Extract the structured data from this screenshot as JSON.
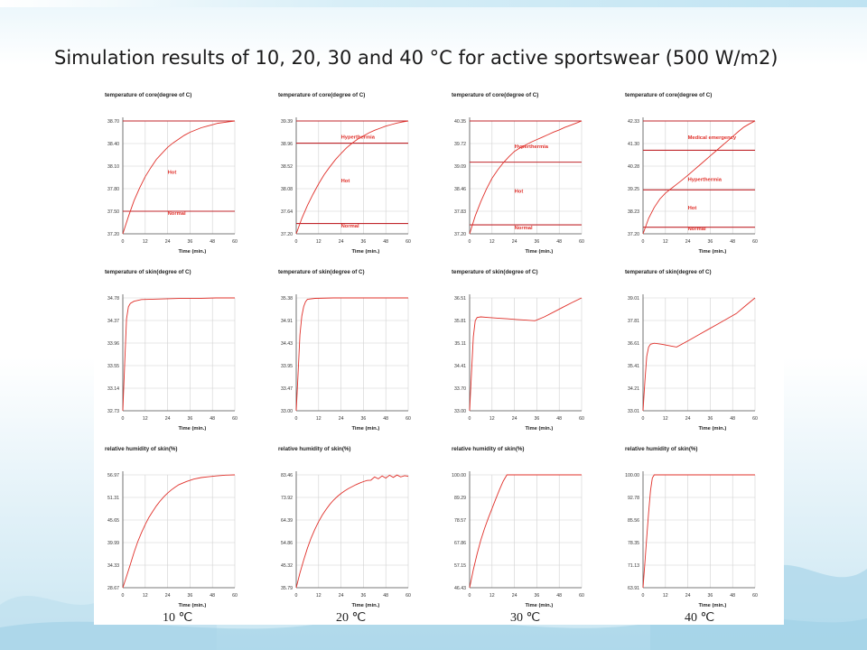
{
  "slide": {
    "title": "Simulation results of 10, 20, 30 and 40 °C for active sportswear (500 W/m2)",
    "temperature_labels": [
      "10 ℃",
      "20 ℃",
      "30 ℃",
      "40 ℃"
    ]
  },
  "colors": {
    "curve": "#e0302a",
    "threshold": "#c0262b",
    "grid": "#d0d0d0",
    "axis": "#555555"
  },
  "chart_data": [
    {
      "id": "core-10",
      "type": "line",
      "title": "temperature of core(degree of C)",
      "xlabel": "Time (min.)",
      "xticks": [
        "0",
        "12",
        "24",
        "36",
        "48",
        "60"
      ],
      "yticks": [
        "37.20",
        "37.50",
        "37.80",
        "38.10",
        "38.40",
        "38.70"
      ],
      "ylim": [
        37.2,
        38.7
      ],
      "xlim": [
        0,
        60
      ],
      "series": [
        {
          "x": [
            0,
            3,
            6,
            9,
            12,
            15,
            18,
            21,
            24,
            27,
            30,
            33,
            36,
            39,
            42,
            45,
            48,
            51,
            54,
            57,
            60
          ],
          "values": [
            37.2,
            37.43,
            37.64,
            37.81,
            37.96,
            38.08,
            38.19,
            38.27,
            38.35,
            38.41,
            38.46,
            38.51,
            38.55,
            38.58,
            38.61,
            38.63,
            38.65,
            38.67,
            38.68,
            38.69,
            38.7
          ]
        }
      ],
      "thresholds": [
        38.7,
        37.5
      ],
      "annotations": [
        {
          "text": "Hot",
          "value": 38.0
        },
        {
          "text": "Normal",
          "value": 37.45
        }
      ]
    },
    {
      "id": "core-20",
      "type": "line",
      "title": "temperature of core(degree of C)",
      "xlabel": "Time (min.)",
      "xticks": [
        "0",
        "12",
        "24",
        "36",
        "48",
        "60"
      ],
      "yticks": [
        "37.20",
        "37.64",
        "38.08",
        "38.52",
        "38.96",
        "39.39"
      ],
      "ylim": [
        37.2,
        39.39
      ],
      "xlim": [
        0,
        60
      ],
      "series": [
        {
          "x": [
            0,
            3,
            6,
            9,
            12,
            15,
            18,
            21,
            24,
            27,
            30,
            33,
            36,
            39,
            42,
            45,
            48,
            51,
            54,
            57,
            60
          ],
          "values": [
            37.2,
            37.5,
            37.75,
            37.97,
            38.17,
            38.35,
            38.5,
            38.64,
            38.76,
            38.87,
            38.96,
            39.04,
            39.1,
            39.16,
            39.21,
            39.25,
            39.29,
            39.32,
            39.35,
            39.37,
            39.39
          ]
        }
      ],
      "thresholds": [
        39.39,
        38.96,
        37.4
      ],
      "annotations": [
        {
          "text": "Hyperthermia",
          "value": 39.05
        },
        {
          "text": "Hot",
          "value": 38.2
        },
        {
          "text": "Normal",
          "value": 37.32
        }
      ]
    },
    {
      "id": "core-30",
      "type": "line",
      "title": "temperature of core(degree of C)",
      "xlabel": "Time (min.)",
      "xticks": [
        "0",
        "12",
        "24",
        "36",
        "48",
        "60"
      ],
      "yticks": [
        "37.20",
        "37.83",
        "38.46",
        "39.09",
        "39.72",
        "40.35"
      ],
      "ylim": [
        37.2,
        40.35
      ],
      "xlim": [
        0,
        60
      ],
      "series": [
        {
          "x": [
            0,
            3,
            6,
            9,
            12,
            15,
            18,
            21,
            24,
            27,
            30,
            33,
            36,
            39,
            42,
            45,
            48,
            51,
            54,
            57,
            60
          ],
          "values": [
            37.2,
            37.7,
            38.1,
            38.45,
            38.75,
            38.98,
            39.18,
            39.35,
            39.5,
            39.6,
            39.68,
            39.76,
            39.83,
            39.9,
            39.97,
            40.04,
            40.1,
            40.17,
            40.23,
            40.29,
            40.35
          ]
        }
      ],
      "thresholds": [
        40.35,
        39.2,
        37.45
      ],
      "annotations": [
        {
          "text": "Hyperthermia",
          "value": 39.6
        },
        {
          "text": "Hot",
          "value": 38.35
        },
        {
          "text": "Normal",
          "value": 37.33
        }
      ]
    },
    {
      "id": "core-40",
      "type": "line",
      "title": "temperature of core(degree of C)",
      "xlabel": "Time (min.)",
      "xticks": [
        "0",
        "12",
        "24",
        "36",
        "48",
        "60"
      ],
      "yticks": [
        "37.20",
        "38.23",
        "39.25",
        "40.28",
        "41.30",
        "42.33"
      ],
      "ylim": [
        37.2,
        42.33
      ],
      "xlim": [
        0,
        60
      ],
      "series": [
        {
          "x": [
            0,
            3,
            6,
            9,
            12,
            15,
            18,
            21,
            24,
            27,
            30,
            33,
            36,
            39,
            42,
            45,
            48,
            51,
            54,
            57,
            60
          ],
          "values": [
            37.2,
            37.9,
            38.4,
            38.78,
            39.05,
            39.25,
            39.45,
            39.65,
            39.86,
            40.08,
            40.3,
            40.52,
            40.74,
            40.96,
            41.18,
            41.4,
            41.62,
            41.84,
            42.05,
            42.2,
            42.33
          ]
        }
      ],
      "thresholds": [
        42.33,
        41.0,
        39.2,
        37.5
      ],
      "annotations": [
        {
          "text": "Medical emergency",
          "value": 41.5
        },
        {
          "text": "Hyperthermia",
          "value": 39.6
        },
        {
          "text": "Hot",
          "value": 38.3
        },
        {
          "text": "Normal",
          "value": 37.37
        }
      ]
    },
    {
      "id": "skin-10",
      "type": "line",
      "title": "temperature of skin(degree of C)",
      "xlabel": "Time (min.)",
      "xticks": [
        "0",
        "12",
        "24",
        "36",
        "48",
        "60"
      ],
      "yticks": [
        "32.73",
        "33.14",
        "33.55",
        "33.96",
        "34.37",
        "34.78"
      ],
      "ylim": [
        32.73,
        34.78
      ],
      "xlim": [
        0,
        60
      ],
      "series": [
        {
          "x": [
            0,
            1,
            2,
            3,
            4,
            6,
            10,
            20,
            30,
            40,
            50,
            60
          ],
          "values": [
            32.73,
            33.6,
            34.4,
            34.62,
            34.68,
            34.72,
            34.75,
            34.76,
            34.77,
            34.77,
            34.78,
            34.78
          ]
        }
      ],
      "thresholds": [],
      "annotations": []
    },
    {
      "id": "skin-20",
      "type": "line",
      "title": "temperature of skin(degree of C)",
      "xlabel": "Time (min.)",
      "xticks": [
        "0",
        "12",
        "24",
        "36",
        "48",
        "60"
      ],
      "yticks": [
        "33.00",
        "33.47",
        "33.95",
        "34.43",
        "34.91",
        "35.38"
      ],
      "ylim": [
        33.0,
        35.38
      ],
      "xlim": [
        0,
        60
      ],
      "series": [
        {
          "x": [
            0,
            1,
            2,
            3,
            4,
            5,
            6,
            10,
            20,
            30,
            40,
            50,
            60
          ],
          "values": [
            33.0,
            33.8,
            34.6,
            35.0,
            35.2,
            35.3,
            35.35,
            35.37,
            35.38,
            35.38,
            35.38,
            35.38,
            35.38
          ]
        }
      ],
      "thresholds": [],
      "annotations": []
    },
    {
      "id": "skin-30",
      "type": "line",
      "title": "temperature of skin(degree of C)",
      "xlabel": "Time (min.)",
      "xticks": [
        "0",
        "12",
        "24",
        "36",
        "48",
        "60"
      ],
      "yticks": [
        "33.00",
        "33.70",
        "34.41",
        "35.11",
        "35.81",
        "36.51"
      ],
      "ylim": [
        33.0,
        36.51
      ],
      "xlim": [
        0,
        60
      ],
      "series": [
        {
          "x": [
            0,
            1,
            2,
            3,
            4,
            6,
            10,
            15,
            20,
            25,
            30,
            35,
            40,
            45,
            50,
            55,
            60
          ],
          "values": [
            33.0,
            34.2,
            35.3,
            35.8,
            35.9,
            35.92,
            35.9,
            35.88,
            35.86,
            35.84,
            35.82,
            35.8,
            35.92,
            36.07,
            36.22,
            36.37,
            36.51
          ]
        }
      ],
      "thresholds": [],
      "annotations": []
    },
    {
      "id": "skin-40",
      "type": "line",
      "title": "temperature of skin(degree of C)",
      "xlabel": "Time (min.)",
      "xticks": [
        "0",
        "12",
        "24",
        "36",
        "48",
        "60"
      ],
      "yticks": [
        "33.01",
        "34.21",
        "35.41",
        "36.61",
        "37.81",
        "39.01"
      ],
      "ylim": [
        33.01,
        39.01
      ],
      "xlim": [
        0,
        60
      ],
      "series": [
        {
          "x": [
            0,
            1,
            2,
            3,
            4,
            6,
            10,
            15,
            18,
            25,
            30,
            35,
            40,
            45,
            50,
            55,
            60
          ],
          "values": [
            33.01,
            34.6,
            35.9,
            36.4,
            36.55,
            36.6,
            36.55,
            36.45,
            36.4,
            36.78,
            37.06,
            37.34,
            37.62,
            37.9,
            38.18,
            38.6,
            39.01
          ]
        }
      ],
      "thresholds": [],
      "annotations": []
    },
    {
      "id": "rh-10",
      "type": "line",
      "title": "relative humidity of skin(%)",
      "xlabel": "Time (min.)",
      "xticks": [
        "0",
        "12",
        "24",
        "36",
        "48",
        "60"
      ],
      "yticks": [
        "28.67",
        "34.33",
        "39.99",
        "45.65",
        "51.31",
        "56.97"
      ],
      "ylim": [
        28.67,
        56.97
      ],
      "xlim": [
        0,
        60
      ],
      "series": [
        {
          "x": [
            0,
            2,
            4,
            6,
            8,
            10,
            12,
            14,
            16,
            18,
            20,
            22,
            24,
            26,
            28,
            30,
            34,
            38,
            42,
            46,
            50,
            55,
            60
          ],
          "values": [
            28.67,
            31.5,
            34.5,
            37.5,
            40.2,
            42.5,
            44.5,
            46.3,
            47.8,
            49.2,
            50.4,
            51.5,
            52.4,
            53.2,
            53.9,
            54.5,
            55.3,
            55.9,
            56.3,
            56.5,
            56.7,
            56.9,
            56.97
          ]
        }
      ],
      "thresholds": [],
      "annotations": []
    },
    {
      "id": "rh-20",
      "type": "line",
      "title": "relative humidity of skin(%)",
      "xlabel": "Time (min.)",
      "xticks": [
        "0",
        "12",
        "24",
        "36",
        "48",
        "60"
      ],
      "yticks": [
        "35.79",
        "45.32",
        "54.86",
        "64.39",
        "73.92",
        "83.46"
      ],
      "ylim": [
        35.79,
        83.46
      ],
      "xlim": [
        0,
        60
      ],
      "series": [
        {
          "x": [
            0,
            2,
            4,
            6,
            8,
            10,
            12,
            14,
            16,
            18,
            20,
            22,
            24,
            26,
            28,
            30,
            32,
            34,
            36,
            38,
            40,
            42,
            44,
            46,
            48,
            50,
            52,
            54,
            56,
            58,
            60
          ],
          "values": [
            35.79,
            42.0,
            47.5,
            52.5,
            56.8,
            60.5,
            63.7,
            66.5,
            68.9,
            71.0,
            72.8,
            74.3,
            75.6,
            76.7,
            77.7,
            78.5,
            79.3,
            80.0,
            80.6,
            81.1,
            81.2,
            82.6,
            81.8,
            83.0,
            82.1,
            83.3,
            82.4,
            83.4,
            82.6,
            83.1,
            82.9
          ]
        }
      ],
      "thresholds": [],
      "annotations": []
    },
    {
      "id": "rh-30",
      "type": "line",
      "title": "relative humidity of skin(%)",
      "xlabel": "Time (min.)",
      "xticks": [
        "0",
        "12",
        "24",
        "36",
        "48",
        "60"
      ],
      "yticks": [
        "46.43",
        "57.15",
        "67.86",
        "78.57",
        "89.29",
        "100.00"
      ],
      "ylim": [
        46.43,
        100.0
      ],
      "xlim": [
        0,
        60
      ],
      "series": [
        {
          "x": [
            0,
            2,
            4,
            6,
            8,
            10,
            12,
            14,
            16,
            18,
            20,
            24,
            30,
            36,
            42,
            48,
            54,
            60
          ],
          "values": [
            46.43,
            55.0,
            62.5,
            69.0,
            74.5,
            79.5,
            84.0,
            88.5,
            93.0,
            97.0,
            100.0,
            100.0,
            100.0,
            100.0,
            100.0,
            100.0,
            100.0,
            100.0
          ]
        }
      ],
      "thresholds": [],
      "annotations": []
    },
    {
      "id": "rh-40",
      "type": "line",
      "title": "relative humidity of skin(%)",
      "xlabel": "Time (min.)",
      "xticks": [
        "0",
        "12",
        "24",
        "36",
        "48",
        "60"
      ],
      "yticks": [
        "63.91",
        "71.13",
        "78.35",
        "85.56",
        "92.78",
        "100.00"
      ],
      "ylim": [
        63.91,
        100.0
      ],
      "xlim": [
        0,
        60
      ],
      "series": [
        {
          "x": [
            0,
            1,
            2,
            3,
            4,
            5,
            6,
            10,
            20,
            30,
            40,
            50,
            60
          ],
          "values": [
            63.91,
            72.0,
            80.0,
            88.0,
            95.0,
            99.0,
            100.0,
            100.0,
            100.0,
            100.0,
            100.0,
            100.0,
            100.0
          ]
        }
      ],
      "thresholds": [],
      "annotations": []
    }
  ]
}
